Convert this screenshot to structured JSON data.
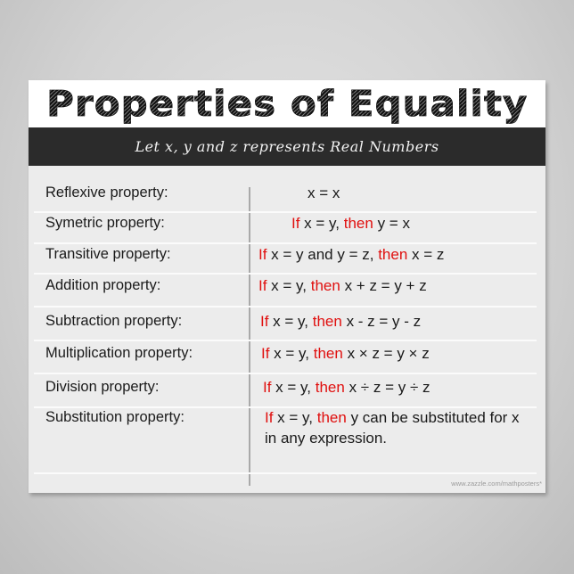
{
  "title": "Properties of Equality",
  "subtitle": "Let x, y and z represents Real Numbers",
  "colors": {
    "highlight": "#e0100f",
    "band": "#2b2b2b"
  },
  "rows": [
    {
      "label": "Reflexive property:",
      "formula": [
        {
          "t": "x = x",
          "red": false
        }
      ]
    },
    {
      "label": "Symetric property:",
      "formula": [
        {
          "t": "If",
          "red": true
        },
        {
          "t": " x = y, ",
          "red": false
        },
        {
          "t": "then",
          "red": true
        },
        {
          "t": " y = x",
          "red": false
        }
      ]
    },
    {
      "label": "Transitive property:",
      "formula": [
        {
          "t": "If",
          "red": true
        },
        {
          "t": " x = y and y = z, ",
          "red": false
        },
        {
          "t": "then",
          "red": true
        },
        {
          "t": " x = z",
          "red": false
        }
      ]
    },
    {
      "label": "Addition property:",
      "formula": [
        {
          "t": "If",
          "red": true
        },
        {
          "t": " x = y, ",
          "red": false
        },
        {
          "t": "then",
          "red": true
        },
        {
          "t": " x + z = y + z",
          "red": false
        }
      ]
    },
    {
      "label": "Subtraction property:",
      "formula": [
        {
          "t": "If",
          "red": true
        },
        {
          "t": " x = y, ",
          "red": false
        },
        {
          "t": "then",
          "red": true
        },
        {
          "t": " x - z = y - z",
          "red": false
        }
      ]
    },
    {
      "label": "Multiplication property:",
      "formula": [
        {
          "t": "If",
          "red": true
        },
        {
          "t": " x = y, ",
          "red": false
        },
        {
          "t": "then",
          "red": true
        },
        {
          "t": " x × z = y × z",
          "red": false
        }
      ]
    },
    {
      "label": "Division property:",
      "formula": [
        {
          "t": "If",
          "red": true
        },
        {
          "t": " x = y, ",
          "red": false
        },
        {
          "t": "then",
          "red": true
        },
        {
          "t": " x ÷ z = y ÷ z",
          "red": false
        }
      ]
    },
    {
      "label": "Substitution property:",
      "formula": [
        {
          "t": "If",
          "red": true
        },
        {
          "t": " x = y, ",
          "red": false
        },
        {
          "t": "then",
          "red": true
        },
        {
          "t": " y can be substituted for x in any expression.",
          "red": false
        }
      ]
    }
  ],
  "footer": "www.zazzle.com/mathposters*"
}
